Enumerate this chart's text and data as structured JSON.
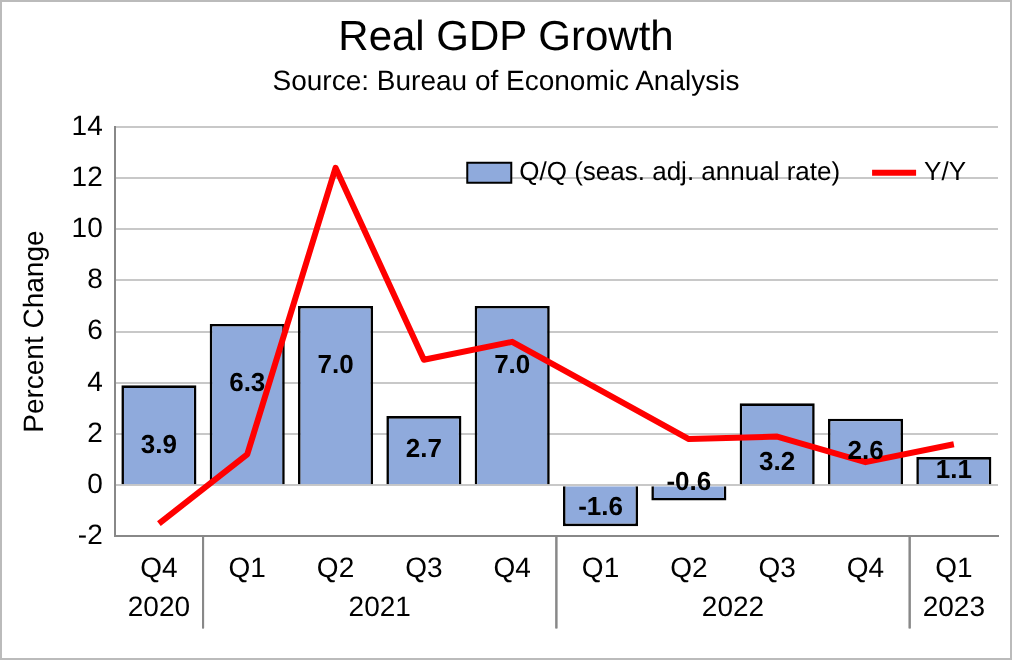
{
  "chart_data": {
    "type": "bar",
    "title": "Real GDP Growth",
    "subtitle": "Source: Bureau of Economic Analysis",
    "ylabel": "Percent Change",
    "categories": [
      "Q4",
      "Q1",
      "Q2",
      "Q3",
      "Q4",
      "Q1",
      "Q2",
      "Q3",
      "Q4",
      "Q1"
    ],
    "annotations": [
      "2020",
      "2021",
      "2022",
      "2023"
    ],
    "series": [
      {
        "name": "Q/Q (seas. adj. annual rate)",
        "color": "#8faadc",
        "values": [
          3.9,
          6.3,
          7.0,
          2.7,
          7.0,
          -1.6,
          -0.6,
          3.2,
          2.6,
          1.1
        ],
        "value_labels": [
          "3.9",
          "6.3",
          "7.0",
          "2.7",
          "7.0",
          "-1.6",
          "-0.6",
          "3.2",
          "2.6",
          "1.1"
        ]
      },
      {
        "name": "Y/Y",
        "type": "line",
        "color": "#ff0000",
        "values": [
          -1.5,
          1.2,
          12.4,
          4.9,
          5.6,
          3.7,
          1.8,
          1.9,
          0.9,
          1.6
        ]
      }
    ],
    "ylim": [
      -2,
      14
    ],
    "yticks": [
      -2,
      0,
      2,
      4,
      6,
      8,
      10,
      12,
      14
    ],
    "grid": "y",
    "legend": "top right",
    "marker": "none"
  }
}
